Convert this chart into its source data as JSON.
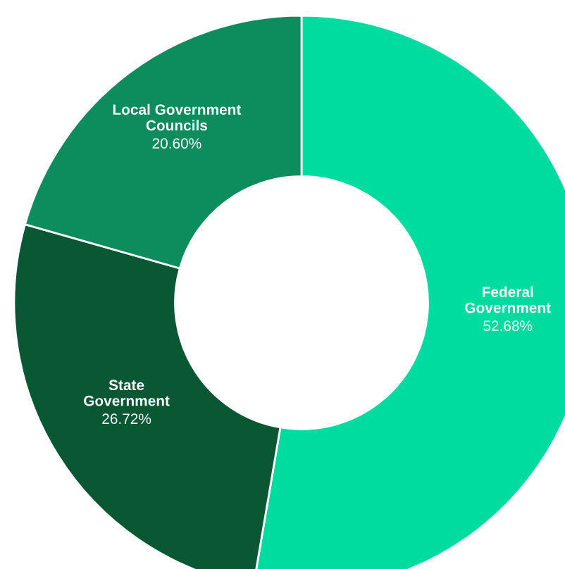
{
  "chart_data": {
    "type": "donut",
    "categories": [
      "Federal\nGovernment",
      "State\nGovernment",
      "Local Government\nCouncils"
    ],
    "values": [
      52.68,
      26.72,
      20.6
    ],
    "colors": [
      "#00dba0",
      "#0a5734",
      "#0d8c5e"
    ],
    "value_labels": [
      "52.68%",
      "26.72%",
      "20.60%"
    ],
    "legend": false
  }
}
